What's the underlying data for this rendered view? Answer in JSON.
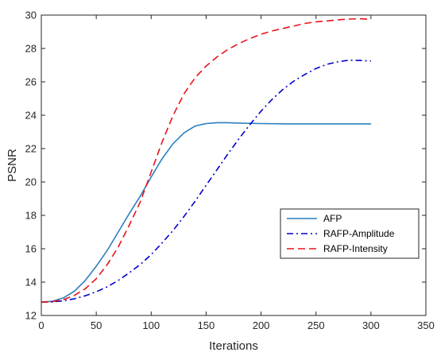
{
  "chart_data": {
    "type": "line",
    "title": "",
    "xlabel": "Iterations",
    "ylabel": "PSNR",
    "xlim": [
      0,
      350
    ],
    "ylim": [
      12,
      30
    ],
    "xticks": [
      0,
      50,
      100,
      150,
      200,
      250,
      300,
      350
    ],
    "yticks": [
      12,
      14,
      16,
      18,
      20,
      22,
      24,
      26,
      28,
      30
    ],
    "grid": false,
    "legend_position": "lower-right",
    "series": [
      {
        "name": "AFP",
        "color": "#2A7FBF",
        "style": "solid",
        "x": [
          0,
          10,
          20,
          30,
          40,
          50,
          60,
          70,
          80,
          90,
          100,
          110,
          120,
          130,
          140,
          150,
          160,
          170,
          180,
          200,
          225,
          250,
          275,
          300
        ],
        "y": [
          12.8,
          12.85,
          13.05,
          13.45,
          14.1,
          14.95,
          15.9,
          17.0,
          18.1,
          19.15,
          20.3,
          21.4,
          22.3,
          22.95,
          23.35,
          23.5,
          23.55,
          23.55,
          23.53,
          23.5,
          23.48,
          23.48,
          23.48,
          23.48
        ]
      },
      {
        "name": "RAFP-Amplitude",
        "color": "#0000CC",
        "style": "dashdot",
        "x": [
          0,
          10,
          20,
          30,
          40,
          50,
          60,
          70,
          80,
          90,
          100,
          110,
          120,
          130,
          140,
          150,
          160,
          170,
          180,
          190,
          200,
          210,
          220,
          230,
          240,
          250,
          260,
          270,
          280,
          290,
          300
        ],
        "y": [
          12.8,
          12.82,
          12.88,
          13.0,
          13.18,
          13.42,
          13.72,
          14.1,
          14.55,
          15.05,
          15.65,
          16.35,
          17.1,
          17.95,
          18.85,
          19.8,
          20.75,
          21.7,
          22.6,
          23.45,
          24.25,
          24.95,
          25.55,
          26.05,
          26.45,
          26.8,
          27.05,
          27.2,
          27.3,
          27.28,
          27.25
        ]
      },
      {
        "name": "RAFP-Intensity",
        "color": "#E8141C",
        "style": "dashed",
        "x": [
          0,
          10,
          20,
          30,
          40,
          50,
          60,
          70,
          80,
          90,
          100,
          110,
          120,
          130,
          140,
          150,
          160,
          170,
          180,
          190,
          200,
          210,
          220,
          230,
          240,
          250,
          260,
          270,
          280,
          290,
          300
        ],
        "y": [
          12.8,
          12.83,
          12.95,
          13.2,
          13.6,
          14.2,
          15.05,
          16.1,
          17.4,
          18.8,
          20.6,
          22.4,
          24.0,
          25.3,
          26.25,
          26.95,
          27.5,
          27.95,
          28.3,
          28.6,
          28.85,
          29.05,
          29.2,
          29.35,
          29.5,
          29.6,
          29.65,
          29.72,
          29.76,
          29.78,
          29.75
        ]
      }
    ]
  }
}
